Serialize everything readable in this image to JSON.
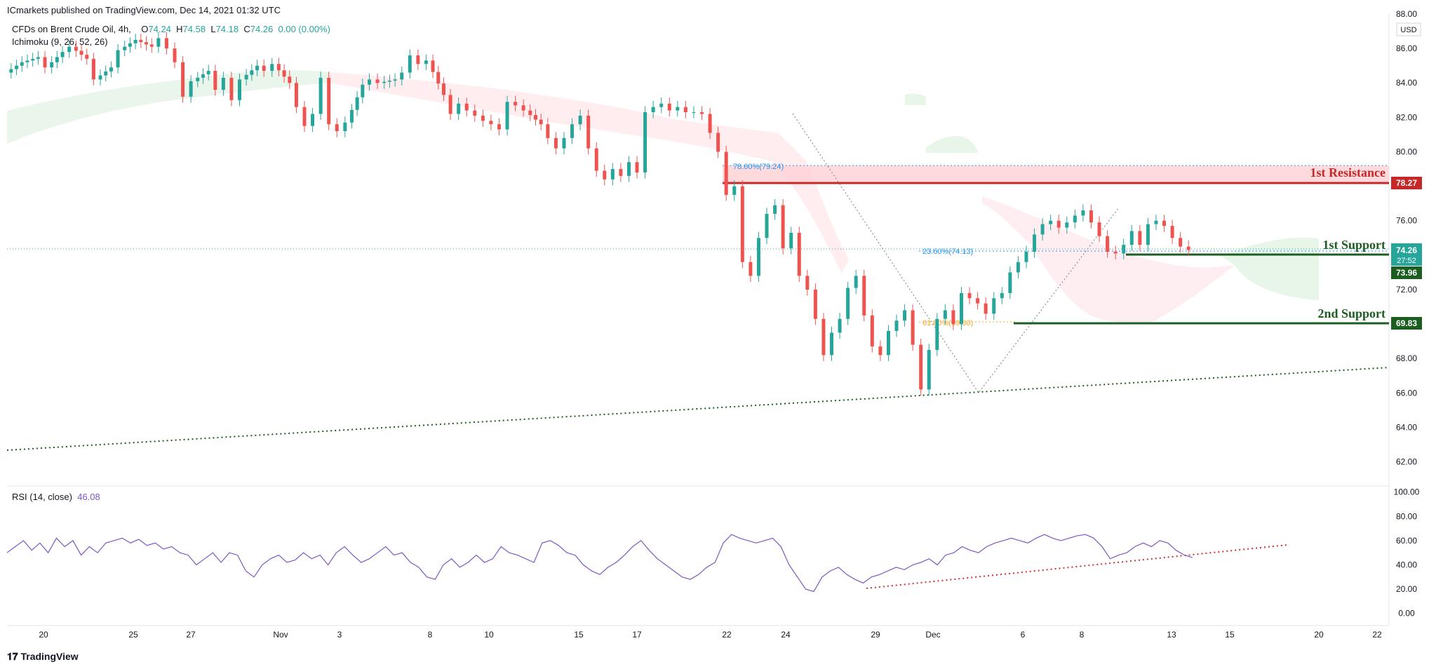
{
  "header": {
    "publisher": "ICmarkets published on TradingView.com, Dec 14, 2021 01:32 UTC",
    "symbol": "CFDs on Brent Crude Oil, 4h,",
    "ohlc": {
      "o_label": "O",
      "o": "74.24",
      "h_label": "H",
      "h": "74.58",
      "l_label": "L",
      "l": "74.18",
      "c_label": "C",
      "c": "74.26",
      "change": "0.00 (0.00%)"
    },
    "indicator": "Ichimoku (9, 26, 52, 26)",
    "rsi_label": "RSI (14, close)",
    "rsi_value": "46.08"
  },
  "footer": {
    "brand": "TradingView"
  },
  "colors": {
    "up": "#26a69a",
    "down": "#ef5350",
    "resistance": "#c62828",
    "support": "#1b5e20",
    "rsi": "#7e57c2",
    "fib": "#2196f3",
    "fib2": "#f9a825",
    "price": "#26a69a",
    "cloud_green": "#e8f5e9",
    "cloud_red": "#ffebee"
  },
  "chart_data": [
    {
      "type": "candlestick",
      "title": "CFDs on Brent Crude Oil, 4h",
      "currency": "USD",
      "ylim": [
        60.6,
        88.0
      ],
      "y_ticks": [
        "62.00",
        "64.00",
        "66.00",
        "68.00",
        "70.00",
        "72.00",
        "74.00",
        "76.00",
        "78.00",
        "80.00",
        "82.00",
        "84.00",
        "86.00",
        "88.00"
      ],
      "x_ticks": [
        "20",
        "25",
        "27",
        "Nov",
        "3",
        "8",
        "10",
        "15",
        "17",
        "22",
        "24",
        "29",
        "Dec",
        "6",
        "8",
        "13",
        "15",
        "20",
        "22"
      ],
      "close_trace": [
        [
          0,
          84.6
        ],
        [
          2,
          85.2
        ],
        [
          4,
          85.5
        ],
        [
          5,
          84.9
        ],
        [
          7,
          85.8
        ],
        [
          8,
          86.1
        ],
        [
          10,
          85.4
        ],
        [
          11,
          84.2
        ],
        [
          13,
          84.9
        ],
        [
          14,
          85.9
        ],
        [
          16,
          86.5
        ],
        [
          18,
          86.1
        ],
        [
          19,
          86.6
        ],
        [
          20,
          86.0
        ],
        [
          21,
          85.2
        ],
        [
          22,
          83.2
        ],
        [
          23,
          84.1
        ],
        [
          25,
          84.7
        ],
        [
          26,
          83.6
        ],
        [
          27,
          84.3
        ],
        [
          28,
          83.0
        ],
        [
          29,
          84.2
        ],
        [
          31,
          85.0
        ],
        [
          32,
          84.7
        ],
        [
          33,
          85.1
        ],
        [
          35,
          84.0
        ],
        [
          36,
          82.6
        ],
        [
          37,
          81.5
        ],
        [
          38,
          82.2
        ],
        [
          39,
          84.3
        ],
        [
          40,
          81.6
        ],
        [
          41,
          81.2
        ],
        [
          42,
          81.7
        ],
        [
          44,
          83.9
        ],
        [
          45,
          84.2
        ],
        [
          46,
          84.0
        ],
        [
          48,
          84.2
        ],
        [
          49,
          84.6
        ],
        [
          50,
          85.6
        ],
        [
          51,
          85.1
        ],
        [
          52,
          85.3
        ],
        [
          54,
          83.3
        ],
        [
          55,
          82.2
        ],
        [
          56,
          82.8
        ],
        [
          57,
          82.4
        ],
        [
          58,
          82.1
        ],
        [
          59,
          81.8
        ],
        [
          60,
          81.6
        ],
        [
          61,
          81.3
        ],
        [
          62,
          82.9
        ],
        [
          63,
          82.7
        ],
        [
          64,
          82.4
        ],
        [
          66,
          81.6
        ],
        [
          67,
          80.8
        ],
        [
          68,
          80.2
        ],
        [
          69,
          80.8
        ],
        [
          70,
          81.6
        ],
        [
          71,
          82.1
        ],
        [
          72,
          80.2
        ],
        [
          73,
          78.9
        ],
        [
          74,
          78.4
        ],
        [
          75,
          79.0
        ],
        [
          76,
          78.6
        ],
        [
          77,
          79.4
        ],
        [
          78,
          78.8
        ],
        [
          79,
          82.3
        ],
        [
          80,
          82.6
        ],
        [
          81,
          82.8
        ],
        [
          82,
          82.4
        ],
        [
          83,
          82.6
        ],
        [
          84,
          82.3
        ],
        [
          85,
          82.3
        ],
        [
          86,
          82.2
        ],
        [
          87,
          81.1
        ],
        [
          88,
          80.0
        ],
        [
          89,
          77.5
        ],
        [
          90,
          78.0
        ],
        [
          91,
          73.6
        ],
        [
          92,
          72.8
        ],
        [
          93,
          75.0
        ],
        [
          94,
          76.4
        ],
        [
          95,
          76.9
        ],
        [
          96,
          74.4
        ],
        [
          97,
          75.3
        ],
        [
          98,
          72.8
        ],
        [
          99,
          72.0
        ],
        [
          100,
          70.3
        ],
        [
          101,
          68.2
        ],
        [
          102,
          69.5
        ],
        [
          103,
          70.3
        ],
        [
          104,
          72.1
        ],
        [
          105,
          72.8
        ],
        [
          106,
          70.5
        ],
        [
          107,
          68.7
        ],
        [
          108,
          68.2
        ],
        [
          109,
          69.6
        ],
        [
          110,
          70.2
        ],
        [
          111,
          70.8
        ],
        [
          112,
          68.8
        ],
        [
          113,
          66.2
        ],
        [
          114,
          68.5
        ],
        [
          115,
          70.3
        ],
        [
          116,
          70.8
        ],
        [
          117,
          70.0
        ],
        [
          118,
          71.8
        ],
        [
          119,
          71.5
        ],
        [
          120,
          71.2
        ],
        [
          121,
          70.6
        ],
        [
          122,
          71.5
        ],
        [
          123,
          71.8
        ],
        [
          124,
          73.0
        ],
        [
          125,
          73.6
        ],
        [
          126,
          74.2
        ],
        [
          127,
          75.2
        ],
        [
          128,
          75.8
        ],
        [
          129,
          76.0
        ],
        [
          130,
          75.6
        ],
        [
          131,
          75.9
        ],
        [
          132,
          76.3
        ],
        [
          133,
          76.6
        ],
        [
          134,
          75.9
        ],
        [
          135,
          75.1
        ],
        [
          136,
          74.2
        ],
        [
          137,
          74.1
        ],
        [
          138,
          74.6
        ],
        [
          139,
          75.4
        ],
        [
          140,
          74.6
        ],
        [
          141,
          75.8
        ],
        [
          142,
          76.0
        ],
        [
          143,
          75.7
        ],
        [
          144,
          75.0
        ],
        [
          145,
          74.5
        ],
        [
          146,
          74.3
        ]
      ],
      "last_price": "74.26",
      "countdown": "27:52",
      "levels": [
        {
          "name": "1st Resistance",
          "value": 78.27,
          "tag": "78.27"
        },
        {
          "name": "1st Support",
          "value": 73.96,
          "tag": "73.96"
        },
        {
          "name": "2nd Support",
          "value": 69.83,
          "tag": "69.83"
        }
      ],
      "annotations": [
        "78.60%(79.24)",
        "23.60%(74.13)",
        "61.80%(69.80)"
      ]
    },
    {
      "type": "line",
      "title": "RSI (14, close)",
      "ylim": [
        -10,
        105
      ],
      "y_ticks": [
        "0.00",
        "20.00",
        "40.00",
        "60.00",
        "80.00",
        "100.00"
      ],
      "series": [
        {
          "values": [
            50,
            55,
            60,
            52,
            58,
            50,
            62,
            55,
            60,
            48,
            55,
            50,
            58,
            60,
            62,
            58,
            61,
            56,
            58,
            53,
            55,
            50,
            48,
            40,
            45,
            50,
            42,
            50,
            48,
            35,
            30,
            40,
            45,
            48,
            42,
            44,
            50,
            45,
            48,
            40,
            50,
            55,
            48,
            42,
            45,
            50,
            55,
            48,
            50,
            42,
            38,
            30,
            28,
            40,
            45,
            38,
            42,
            48,
            42,
            45,
            55,
            50,
            48,
            45,
            42,
            58,
            60,
            56,
            50,
            48,
            40,
            35,
            32,
            38,
            42,
            48,
            55,
            60,
            52,
            45,
            40,
            35,
            30,
            28,
            32,
            38,
            42,
            58,
            65,
            62,
            60,
            58,
            60,
            62,
            55,
            40,
            30,
            20,
            18,
            30,
            35,
            38,
            32,
            28,
            25,
            30,
            32,
            35,
            38,
            36,
            40,
            42,
            45,
            40,
            48,
            50,
            55,
            52,
            50,
            55,
            58,
            60,
            62,
            60,
            58,
            62,
            65,
            62,
            60,
            62,
            64,
            65,
            62,
            55,
            45,
            48,
            50,
            55,
            58,
            55,
            60,
            58,
            52,
            48,
            46
          ]
        }
      ]
    }
  ]
}
